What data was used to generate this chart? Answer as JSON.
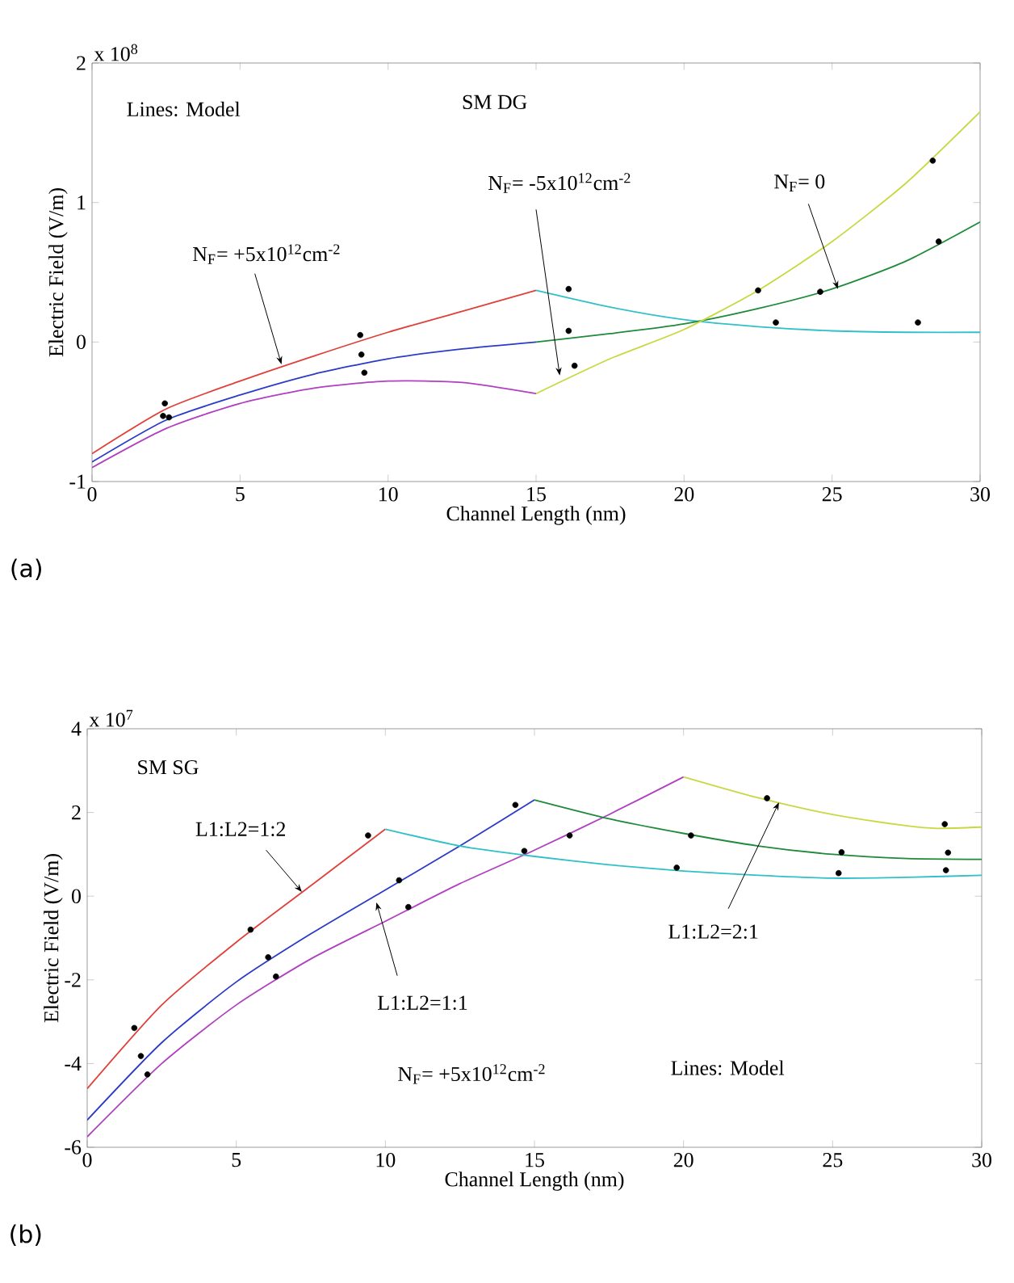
{
  "chart_data": [
    {
      "type": "line",
      "xlabel": "Channel Length (nm)",
      "ylabel": "Electric Field (V/m)",
      "xlim": [
        0,
        30
      ],
      "xticks": [
        0,
        5,
        10,
        15,
        20,
        25,
        30
      ],
      "ylim": [
        -1,
        2
      ],
      "yticks": [
        -1,
        0,
        1,
        2
      ],
      "annotations": [
        "x 10$^{8}$",
        "Lines: Model",
        "SM DG",
        {
          "text": "N$_{F}$= +5x10$^{12}$cm$^{-2}$",
          "x": 6.4,
          "y": -0.16
        },
        {
          "text": "N$_{F}$= -5x10$^{12}$cm$^{-2}$",
          "x": 15.8,
          "y": -0.24
        },
        {
          "text": "N$_{F}$= 0",
          "x": 25.2,
          "y": 0.38
        },
        "(a)"
      ],
      "series": [
        {
          "type": "line",
          "color": "#e0403a",
          "x": [
            0,
            2.5,
            5,
            7.5,
            10,
            12.5,
            15
          ],
          "values": [
            -0.8,
            -0.48,
            -0.28,
            -0.1,
            0.07,
            0.22,
            0.37
          ]
        },
        {
          "type": "line",
          "color": "#2a3bc8",
          "x": [
            0,
            2.5,
            5,
            7.5,
            10,
            12.5,
            15
          ],
          "values": [
            -0.86,
            -0.56,
            -0.38,
            -0.23,
            -0.12,
            -0.05,
            0.0
          ]
        },
        {
          "type": "line",
          "color": "#b040c0",
          "x": [
            0,
            2.5,
            5,
            7.5,
            10,
            12.5,
            15
          ],
          "values": [
            -0.9,
            -0.62,
            -0.44,
            -0.33,
            -0.28,
            -0.29,
            -0.37
          ]
        },
        {
          "type": "line",
          "color": "#30c0c8",
          "x": [
            15,
            17.5,
            20,
            22.5,
            25,
            27.5,
            30
          ],
          "values": [
            0.37,
            0.25,
            0.16,
            0.11,
            0.08,
            0.07,
            0.07
          ]
        },
        {
          "type": "line",
          "color": "#1e8a3a",
          "x": [
            15,
            17.5,
            20,
            22.5,
            25,
            27.5,
            30
          ],
          "values": [
            0.0,
            0.06,
            0.13,
            0.24,
            0.38,
            0.58,
            0.86
          ]
        },
        {
          "type": "line",
          "color": "#c8d840",
          "x": [
            15,
            17.5,
            20,
            22.5,
            25,
            27.5,
            30
          ],
          "values": [
            -0.37,
            -0.12,
            0.09,
            0.37,
            0.72,
            1.14,
            1.65
          ]
        },
        {
          "type": "scatter",
          "color": "#000000",
          "marker": "circle",
          "x": [
            2.46,
            2.4,
            2.6,
            9.06,
            9.1,
            9.2,
            16.1,
            16.1,
            16.3,
            22.5,
            23.1,
            24.6,
            27.9,
            28.4,
            28.6
          ],
          "values": [
            -0.44,
            -0.53,
            -0.54,
            0.05,
            -0.09,
            -0.22,
            0.38,
            0.08,
            -0.17,
            0.37,
            0.14,
            0.36,
            0.14,
            1.3,
            0.72
          ]
        }
      ]
    },
    {
      "type": "line",
      "xlabel": "Channel Length (nm)",
      "ylabel": "Electric Field (V/m)",
      "xlim": [
        0,
        30
      ],
      "xticks": [
        0,
        5,
        10,
        15,
        20,
        25,
        30
      ],
      "ylim": [
        -6,
        4
      ],
      "yticks": [
        -6,
        -4,
        -2,
        0,
        2,
        4
      ],
      "annotations": [
        "x 10$^{7}$",
        "SM SG",
        {
          "text": "L1:L2=1:2",
          "x": 7.2,
          "y": 0.1
        },
        {
          "text": "L1:L2=1:1",
          "x": 9.7,
          "y": -0.15
        },
        {
          "text": "L1:L2=2:1",
          "x": 23.2,
          "y": 2.24
        },
        "N$_{F}$= +5x10$^{12}$cm$^{-2}$",
        "Lines: Model",
        "(b)"
      ],
      "series": [
        {
          "type": "line",
          "color": "#e0403a",
          "x": [
            0,
            2.5,
            5,
            7.5,
            10
          ],
          "values": [
            -4.6,
            -2.6,
            -1.1,
            0.25,
            1.6
          ]
        },
        {
          "type": "line",
          "color": "#2a3bc8",
          "x": [
            0,
            2.5,
            5,
            7.5,
            10,
            12.5,
            15
          ],
          "values": [
            -5.35,
            -3.5,
            -2.05,
            -0.9,
            0.15,
            1.2,
            2.3
          ]
        },
        {
          "type": "line",
          "color": "#b040c0",
          "x": [
            0,
            2.5,
            5,
            7.5,
            10,
            12.5,
            15,
            17.5,
            20
          ],
          "values": [
            -5.75,
            -4.0,
            -2.6,
            -1.5,
            -0.6,
            0.3,
            1.1,
            1.95,
            2.85
          ]
        },
        {
          "type": "line",
          "color": "#30c0c8",
          "x": [
            10,
            12.5,
            15,
            17.5,
            20,
            22.5,
            25,
            27.5,
            30
          ],
          "values": [
            1.6,
            1.2,
            0.95,
            0.75,
            0.6,
            0.5,
            0.43,
            0.45,
            0.5
          ]
        },
        {
          "type": "line",
          "color": "#1e8a3a",
          "x": [
            15,
            17.5,
            20,
            22.5,
            25,
            27.5,
            30
          ],
          "values": [
            2.3,
            1.85,
            1.5,
            1.2,
            1.0,
            0.9,
            0.88
          ]
        },
        {
          "type": "line",
          "color": "#c8d840",
          "x": [
            20,
            22.5,
            25,
            27.5,
            28.5,
            30
          ],
          "values": [
            2.85,
            2.35,
            1.95,
            1.68,
            1.62,
            1.65
          ]
        },
        {
          "type": "scatter",
          "color": "#000000",
          "marker": "circle",
          "x": [
            9.42,
            5.48,
            10.46,
            10.77,
            14.36,
            14.66,
            16.18,
            19.77,
            20.25,
            22.8,
            25.3,
            25.2,
            28.76,
            28.87,
            28.8,
            1.58,
            1.8,
            2.02,
            6.07,
            6.33
          ],
          "values": [
            1.45,
            -0.8,
            0.38,
            -0.26,
            2.18,
            1.08,
            1.45,
            0.68,
            1.45,
            2.34,
            1.05,
            0.55,
            1.72,
            1.04,
            0.62,
            -3.15,
            -3.82,
            -4.26,
            -1.46,
            -1.92
          ]
        }
      ]
    }
  ]
}
